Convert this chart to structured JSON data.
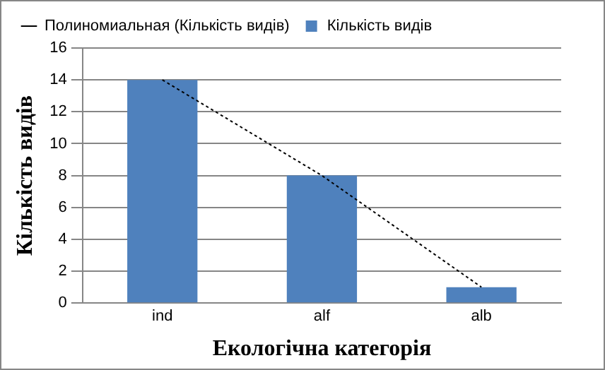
{
  "chart_data": {
    "type": "bar",
    "xlabel": "Екологічна категорія",
    "ylabel": "Кількість видів",
    "categories": [
      "ind",
      "alf",
      "alb"
    ],
    "series": [
      {
        "name": "Кількість видів",
        "color": "#4f81bd",
        "values": [
          14,
          8,
          1
        ]
      },
      {
        "name": "Полиномиальная (Кількість видів)",
        "type": "line",
        "color": "#000000",
        "values": [
          14,
          8,
          1
        ],
        "line_style": "dotted",
        "marker": "none"
      }
    ],
    "ylim": [
      0,
      16
    ],
    "yticks": [
      0,
      2,
      4,
      6,
      8,
      10,
      12,
      14,
      16
    ],
    "grid": "y",
    "legend": "top"
  }
}
